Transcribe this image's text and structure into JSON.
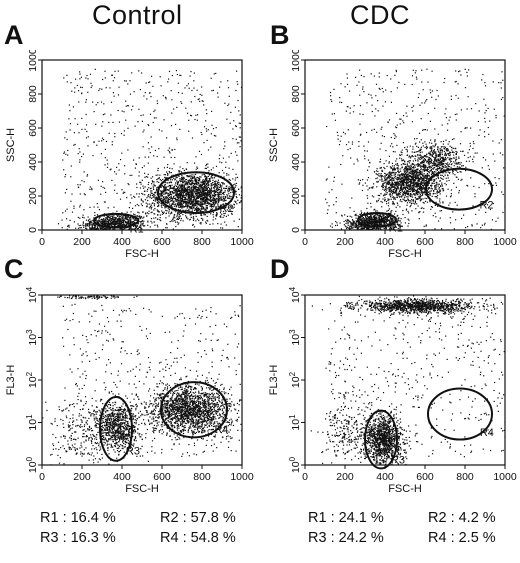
{
  "columns": {
    "left_title": "Control",
    "right_title": "CDC"
  },
  "chart_data": [
    {
      "type": "scatter",
      "panel": "A",
      "xlabel": "FSC-H",
      "ylabel": "SSC-H",
      "xlim": [
        0,
        1000
      ],
      "ylim": [
        0,
        1000
      ],
      "xticks": [
        "0",
        "200",
        "400",
        "600",
        "800",
        "1000"
      ],
      "yticks": [
        "0",
        "200",
        "400",
        "600",
        "800",
        "1000"
      ],
      "log_y": false,
      "clusters": [
        {
          "cx": 380,
          "cy": 50,
          "sx": 70,
          "sy": 25,
          "n": 500
        },
        {
          "cx": 750,
          "cy": 210,
          "sx": 110,
          "sy": 65,
          "n": 2000
        },
        {
          "cx": 300,
          "cy": 25,
          "sx": 80,
          "sy": 20,
          "n": 250
        }
      ],
      "background": {
        "xmin": 100,
        "xmax": 1000,
        "ymin": 0,
        "ymax": 950,
        "n": 600
      },
      "gates": [
        {
          "label": "R1",
          "cx": 370,
          "cy": 55,
          "rx": 110,
          "ry": 40
        },
        {
          "label": "R2",
          "cx": 770,
          "cy": 220,
          "rx": 190,
          "ry": 120
        }
      ]
    },
    {
      "type": "scatter",
      "panel": "B",
      "xlabel": "FSC-H",
      "ylabel": "SSC-H",
      "xlim": [
        0,
        1000
      ],
      "ylim": [
        0,
        1000
      ],
      "xticks": [
        "0",
        "200",
        "400",
        "600",
        "800",
        "1000"
      ],
      "yticks": [
        "0",
        "200",
        "400",
        "600",
        "800",
        "1000"
      ],
      "log_y": false,
      "clusters": [
        {
          "cx": 360,
          "cy": 55,
          "sx": 60,
          "sy": 25,
          "n": 550
        },
        {
          "cx": 520,
          "cy": 280,
          "sx": 80,
          "sy": 60,
          "n": 1300
        },
        {
          "cx": 650,
          "cy": 420,
          "sx": 70,
          "sy": 50,
          "n": 500
        },
        {
          "cx": 300,
          "cy": 30,
          "sx": 60,
          "sy": 20,
          "n": 300
        }
      ],
      "background": {
        "xmin": 100,
        "xmax": 1000,
        "ymin": 0,
        "ymax": 950,
        "n": 500
      },
      "gates": [
        {
          "label": "R1",
          "cx": 360,
          "cy": 60,
          "rx": 95,
          "ry": 40
        },
        {
          "label": "R2",
          "cx": 770,
          "cy": 240,
          "rx": 165,
          "ry": 120
        }
      ]
    },
    {
      "type": "scatter",
      "panel": "C",
      "xlabel": "FSC-H",
      "ylabel": "FL3-H",
      "xlim": [
        0,
        1000
      ],
      "ylim": [
        0,
        4
      ],
      "xticks": [
        "0",
        "200",
        "400",
        "600",
        "800",
        "1000"
      ],
      "yticks": [
        "10^0",
        "10^1",
        "10^2",
        "10^3",
        "10^4"
      ],
      "log_y": true,
      "clusters": [
        {
          "cx": 380,
          "cy": 0.9,
          "sx": 55,
          "sy": 0.28,
          "n": 800
        },
        {
          "cx": 740,
          "cy": 1.3,
          "sx": 100,
          "sy": 0.28,
          "n": 1700
        },
        {
          "cx": 200,
          "cy": 0.8,
          "sx": 80,
          "sy": 0.4,
          "n": 250
        },
        {
          "cx": 250,
          "cy": 3.97,
          "sx": 80,
          "sy": 0.02,
          "n": 80
        }
      ],
      "background": {
        "xmin": 100,
        "xmax": 1000,
        "ymin": 0.2,
        "ymax": 3.8,
        "n": 450
      },
      "gates": [
        {
          "label": "R3",
          "cx": 370,
          "cy": 0.85,
          "rx": 80,
          "ry": 0.75
        },
        {
          "label": "R4",
          "cx": 760,
          "cy": 1.3,
          "rx": 165,
          "ry": 0.65
        }
      ]
    },
    {
      "type": "scatter",
      "panel": "D",
      "xlabel": "FSC-H",
      "ylabel": "FL3-H",
      "xlim": [
        0,
        1000
      ],
      "ylim": [
        0,
        4
      ],
      "xticks": [
        "0",
        "200",
        "400",
        "600",
        "800",
        "1000"
      ],
      "yticks": [
        "10^0",
        "10^1",
        "10^2",
        "10^3",
        "10^4"
      ],
      "log_y": true,
      "clusters": [
        {
          "cx": 390,
          "cy": 0.6,
          "sx": 45,
          "sy": 0.3,
          "n": 1100
        },
        {
          "cx": 560,
          "cy": 3.75,
          "sx": 150,
          "sy": 0.08,
          "n": 1100
        },
        {
          "cx": 200,
          "cy": 0.8,
          "sx": 60,
          "sy": 0.35,
          "n": 200
        }
      ],
      "background": {
        "xmin": 100,
        "xmax": 1000,
        "ymin": 0.2,
        "ymax": 3.6,
        "n": 450
      },
      "gates": [
        {
          "label": "R3",
          "cx": 380,
          "cy": 0.6,
          "rx": 80,
          "ry": 0.68
        },
        {
          "label": "R4",
          "cx": 775,
          "cy": 1.2,
          "rx": 160,
          "ry": 0.6
        }
      ]
    }
  ],
  "stats": {
    "left": {
      "r1": "R1 : 16.4 %",
      "r2": "R2 : 57.8 %",
      "r3": "R3 : 16.3 %",
      "r4": "R4 : 54.8 %"
    },
    "right": {
      "r1": "R1 : 24.1 %",
      "r2": "R2 : 4.2 %",
      "r3": "R3 : 24.2 %",
      "r4": "R4 : 2.5 %"
    }
  }
}
